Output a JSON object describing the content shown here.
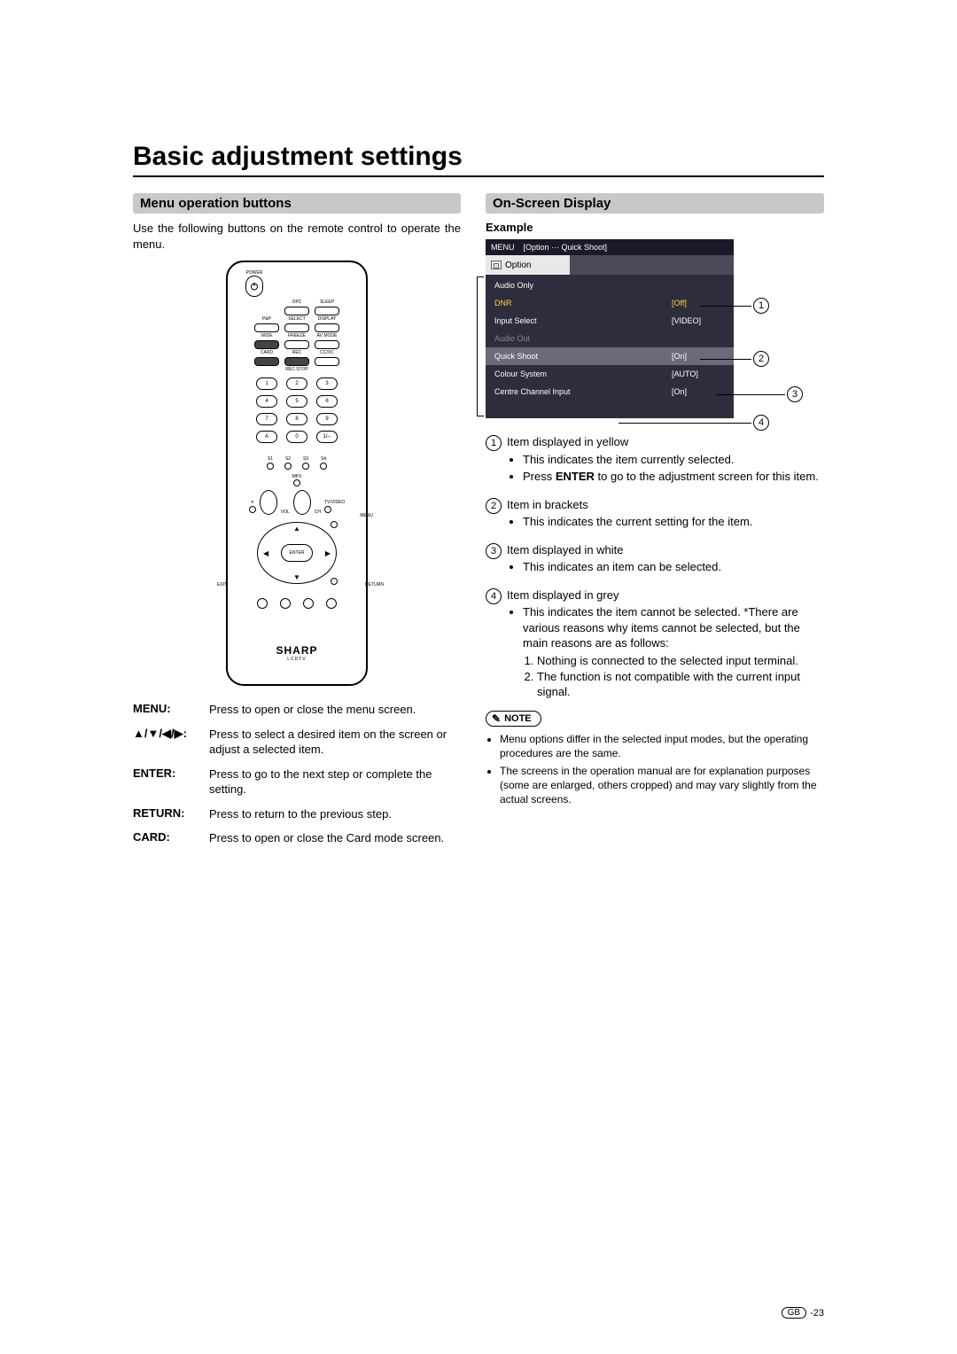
{
  "page_title": "Basic adjustment settings",
  "left": {
    "header": "Menu operation buttons",
    "intro": "Use the following buttons on the remote control to operate the menu.",
    "remote": {
      "power_label": "POWER",
      "row1_labels": [
        "",
        "OPC",
        "SLEEP"
      ],
      "row2_labels": [
        "P&P",
        "SELECT",
        "DISPLAY"
      ],
      "row3_labels": [
        "WIDE",
        "FREEZE",
        "AV MODE"
      ],
      "row4_labels": [
        "CARD",
        "REC",
        "CC/VC"
      ],
      "recstop_label": "REC STOP",
      "nums": [
        "1",
        "2",
        "3",
        "4",
        "5",
        "6",
        "7",
        "8",
        "9",
        "A",
        "0",
        "1/--"
      ],
      "preset_labels": [
        "S1",
        "S2",
        "S3",
        "S4"
      ],
      "mpx_label": "MPX",
      "mute_label": "✕",
      "vol_label": "VOL",
      "ch_label": "CH",
      "tvvideo_label": "TV/VIDEO",
      "menu_label": "MENU",
      "enter_label": "ENTER",
      "exit_label": "EXIT",
      "return_label": "RETURN",
      "brand": "SHARP",
      "brand_sub": "LCDTV"
    },
    "definitions": [
      {
        "label": "MENU:",
        "text": "Press to open or close the menu screen."
      },
      {
        "label": "▲/▼/◀/▶:",
        "text": "Press to select a desired item on the screen or adjust a selected item."
      },
      {
        "label": "ENTER:",
        "text": "Press to go to the next step or complete the setting."
      },
      {
        "label": "RETURN:",
        "text": "Press to return to the previous step."
      },
      {
        "label": "CARD:",
        "text": "Press to open or close the Card mode screen."
      }
    ]
  },
  "right": {
    "header": "On-Screen Display",
    "example_label": "Example",
    "osd": {
      "menu_label": "MENU",
      "breadcrumb": "[Option ··· Quick Shoot]",
      "tab_label": "Option",
      "rows": [
        {
          "name": "Audio Only",
          "val": "",
          "style": "white"
        },
        {
          "name": "DNR",
          "val": "[Off]",
          "style": "yellow"
        },
        {
          "name": "Input Select",
          "val": "[VIDEO]",
          "style": "white"
        },
        {
          "name": "Audio Out",
          "val": "",
          "style": "grey"
        },
        {
          "name": "Quick Shoot",
          "val": "[On]",
          "style": "white",
          "selected": true
        },
        {
          "name": "Colour System",
          "val": "[AUTO]",
          "style": "white"
        },
        {
          "name": "Centre Channel Input",
          "val": "[On]",
          "style": "white"
        }
      ],
      "colors": {
        "panel_bg": "#2d2d3d",
        "titlebar_bg": "#1a1a28",
        "tab_bg": "#e8e8e8",
        "selected_bg": "#6a6a7a",
        "yellow": "#ffd040",
        "grey_text": "#888888",
        "white": "#ffffff"
      }
    },
    "callouts": [
      "1",
      "2",
      "3",
      "4"
    ],
    "items": [
      {
        "num": "1",
        "lead": "Item displayed in yellow",
        "bullets": [
          "This indicates the item currently selected.",
          "Press <b>ENTER</b> to go to the adjustment screen for this item."
        ]
      },
      {
        "num": "2",
        "lead": "Item in brackets",
        "bullets": [
          "This indicates the current setting for the item."
        ]
      },
      {
        "num": "3",
        "lead": "Item displayed in white",
        "bullets": [
          "This indicates an item can be selected."
        ]
      },
      {
        "num": "4",
        "lead": "Item displayed in grey",
        "bullets": [
          "This indicates the item cannot be selected. *There are various reasons why items cannot be selected, but the main reasons are as follows:"
        ],
        "ordered": [
          "Nothing is connected to the selected input terminal.",
          "The function is not compatible with the current input signal."
        ]
      }
    ],
    "note_label": "NOTE",
    "notes": [
      "Menu options differ in the selected input modes, but the operating procedures are the same.",
      "The screens in the operation manual are for explanation purposes (some are enlarged, others cropped) and may vary slightly from the actual screens."
    ]
  },
  "footer": {
    "region": "GB",
    "page": "-23"
  }
}
